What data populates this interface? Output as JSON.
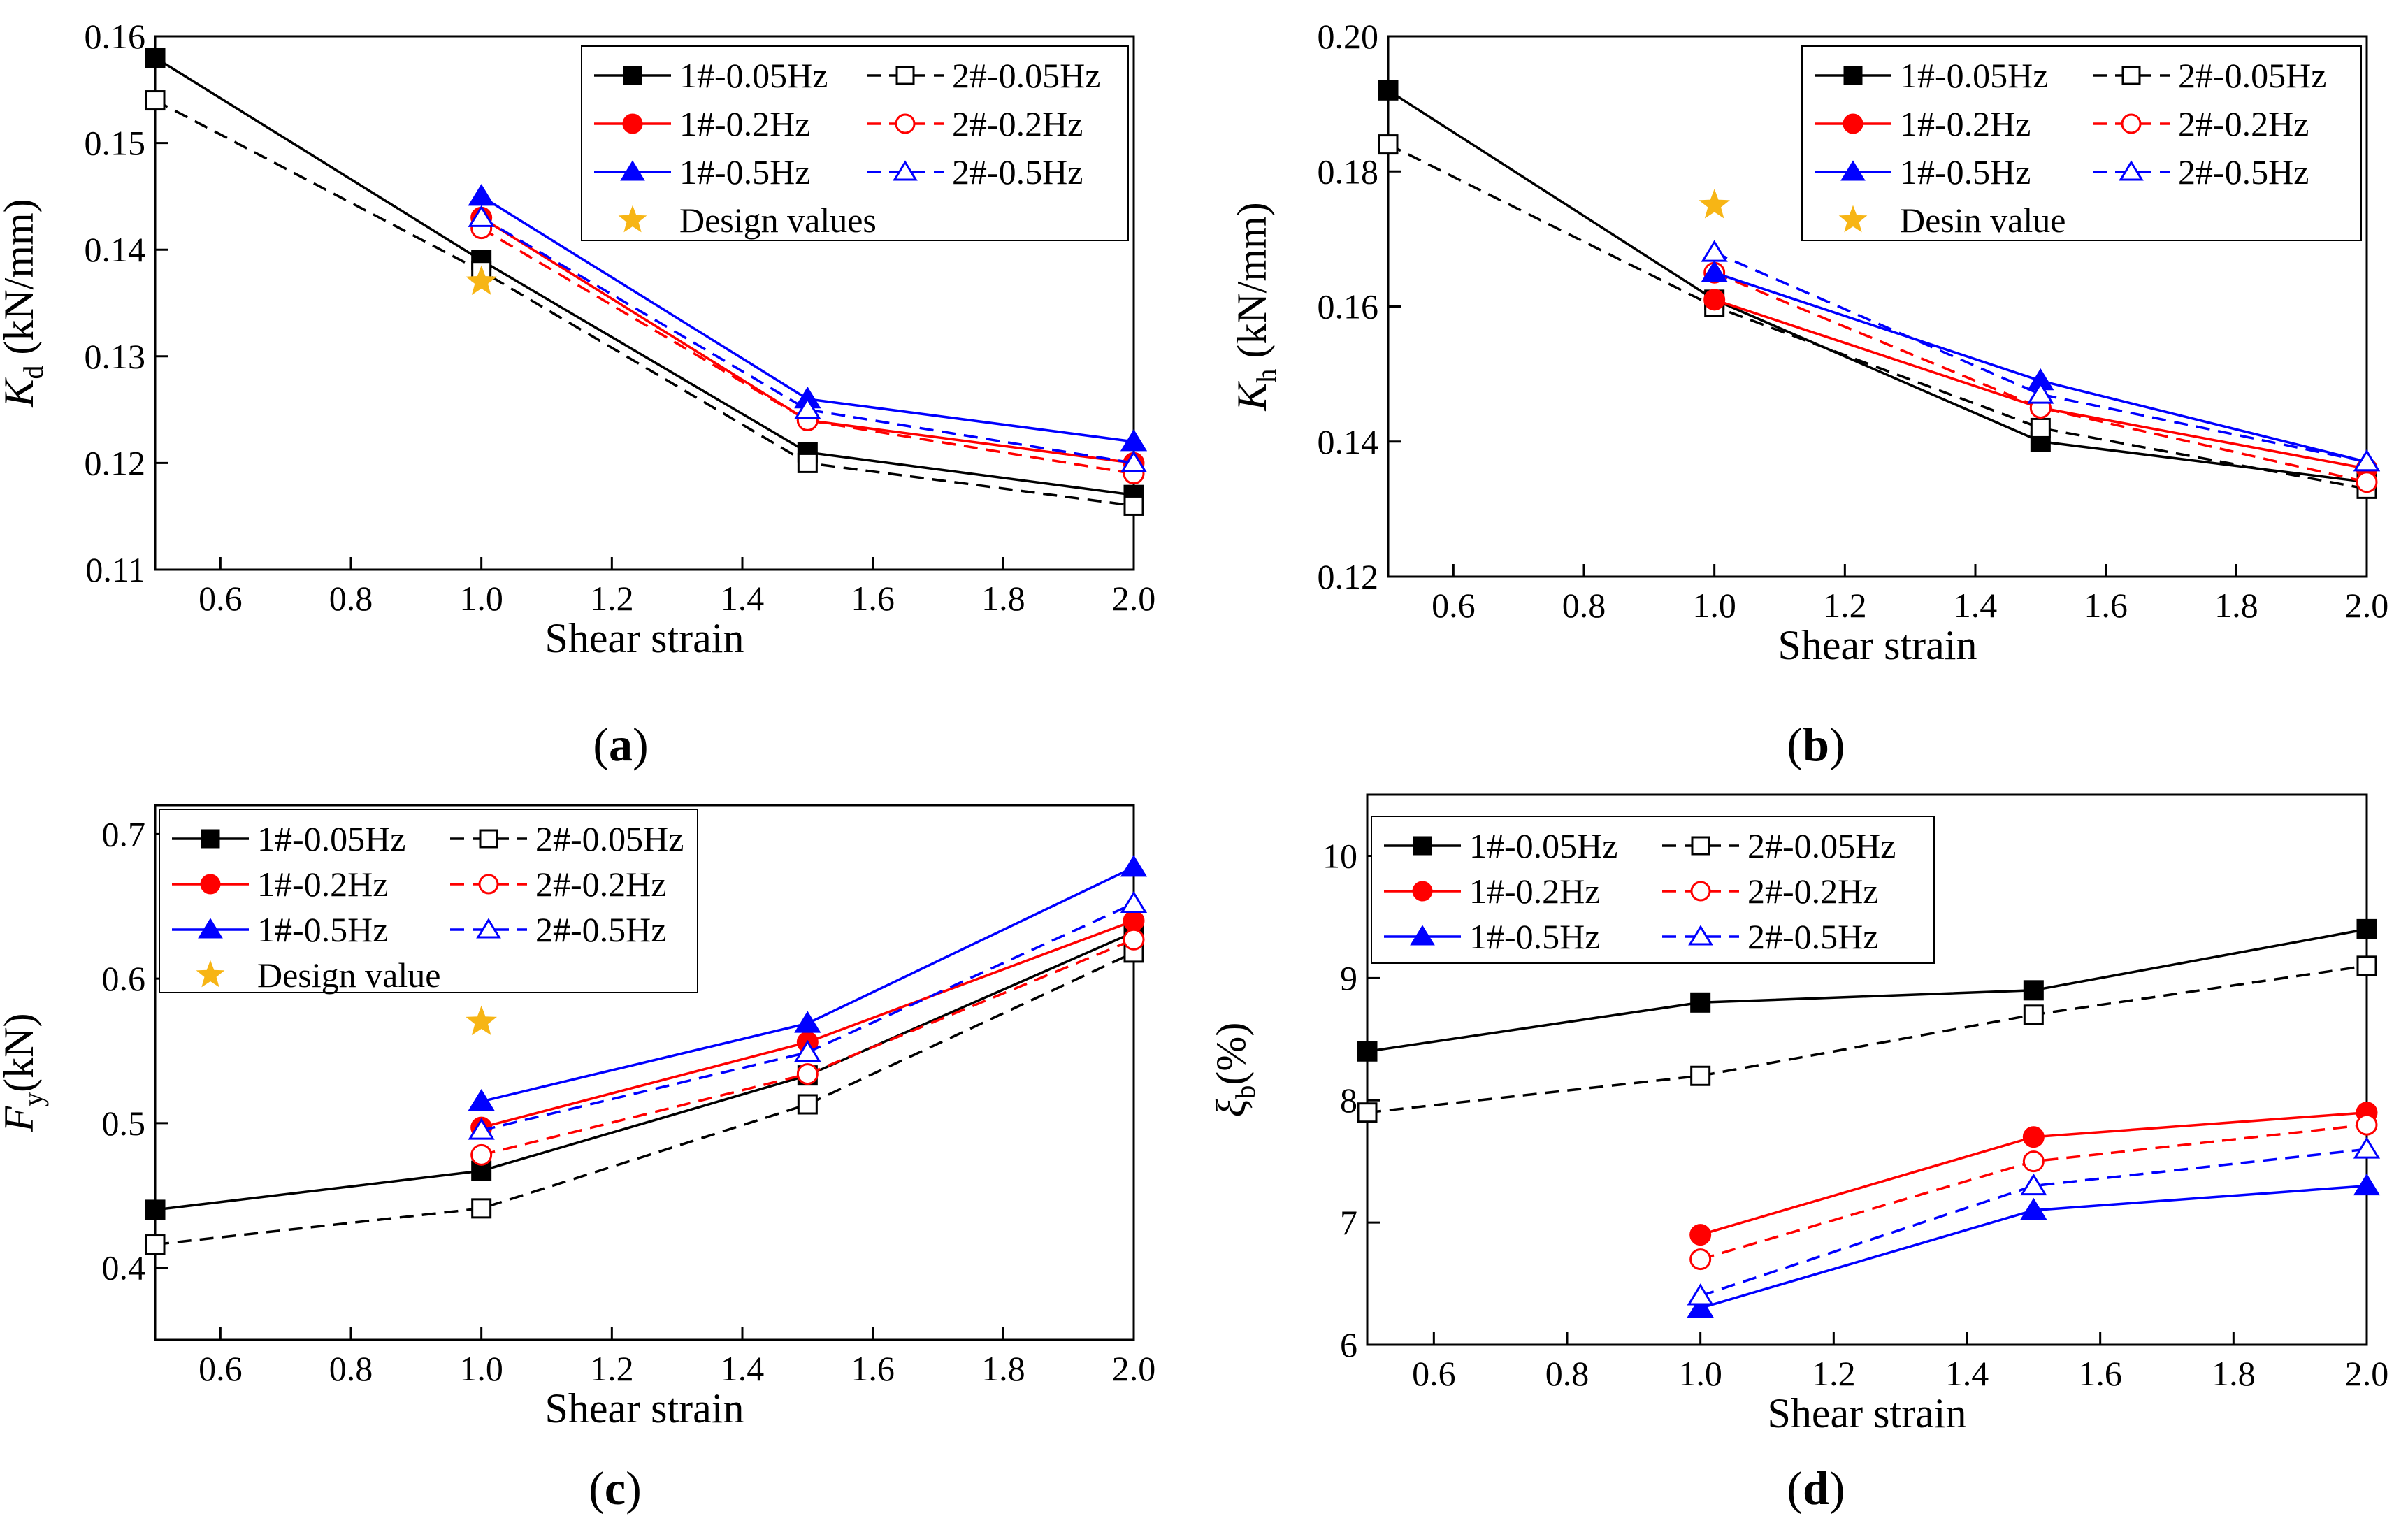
{
  "figure": {
    "colors": {
      "black": "#000000",
      "red": "#ff0000",
      "blue": "#0000ff",
      "star": "#f7b515"
    }
  },
  "chart_data": [
    {
      "panel": "a",
      "type": "line",
      "caption": "(a)",
      "caption_letter": "a",
      "ylabel_main": "K",
      "ylabel_sub": "d",
      "ylabel_rest": " (kN/mm)",
      "xlabel": "Shear strain",
      "xlim": [
        0.5,
        2.0
      ],
      "ylim": [
        0.11,
        0.16
      ],
      "xticks": [
        0.6,
        0.8,
        1.0,
        1.2,
        1.4,
        1.6,
        1.8,
        2.0
      ],
      "xtick_labels": [
        "0.6",
        "0.8",
        "1.0",
        "1.2",
        "1.4",
        "1.6",
        "1.8",
        "2.0"
      ],
      "yticks": [
        0.11,
        0.12,
        0.13,
        0.14,
        0.15,
        0.16
      ],
      "ytick_labels": [
        "0.11",
        "0.12",
        "0.13",
        "0.14",
        "0.15",
        "0.16"
      ],
      "legend_position": "top-right",
      "legend_columns": 2,
      "series": [
        {
          "name": "1#-0.05Hz",
          "color": "#000000",
          "dash": "solid",
          "marker": "square",
          "filled": true,
          "x": [
            0.5,
            1.0,
            1.5,
            2.0
          ],
          "y": [
            0.158,
            0.139,
            0.121,
            0.117
          ]
        },
        {
          "name": "2#-0.05Hz",
          "color": "#000000",
          "dash": "dashed",
          "marker": "square",
          "filled": false,
          "x": [
            0.5,
            1.0,
            1.5,
            2.0
          ],
          "y": [
            0.154,
            0.138,
            0.12,
            0.116
          ]
        },
        {
          "name": "1#-0.2Hz",
          "color": "#ff0000",
          "dash": "solid",
          "marker": "circle",
          "filled": true,
          "x": [
            1.0,
            1.5,
            2.0
          ],
          "y": [
            0.143,
            0.124,
            0.12
          ]
        },
        {
          "name": "2#-0.2Hz",
          "color": "#ff0000",
          "dash": "dashed",
          "marker": "circle",
          "filled": false,
          "x": [
            1.0,
            1.5,
            2.0
          ],
          "y": [
            0.142,
            0.124,
            0.119
          ]
        },
        {
          "name": "1#-0.5Hz",
          "color": "#0000ff",
          "dash": "solid",
          "marker": "triangle",
          "filled": true,
          "x": [
            1.0,
            1.5,
            2.0
          ],
          "y": [
            0.145,
            0.126,
            0.122
          ]
        },
        {
          "name": "2#-0.5Hz",
          "color": "#0000ff",
          "dash": "dashed",
          "marker": "triangle",
          "filled": false,
          "x": [
            1.0,
            1.5,
            2.0
          ],
          "y": [
            0.143,
            0.125,
            0.12
          ]
        }
      ],
      "design": {
        "name": "Design values",
        "x": 1.0,
        "y": 0.137
      }
    },
    {
      "panel": "b",
      "type": "line",
      "caption": "(b)",
      "caption_letter": "b",
      "ylabel_main": "K",
      "ylabel_sub": "h",
      "ylabel_rest": " (kN/mm)",
      "xlabel": "Shear strain",
      "xlim": [
        0.5,
        2.0
      ],
      "ylim": [
        0.12,
        0.2
      ],
      "xticks": [
        0.6,
        0.8,
        1.0,
        1.2,
        1.4,
        1.6,
        1.8,
        2.0
      ],
      "xtick_labels": [
        "0.6",
        "0.8",
        "1.0",
        "1.2",
        "1.4",
        "1.6",
        "1.8",
        "2.0"
      ],
      "yticks": [
        0.12,
        0.14,
        0.16,
        0.18,
        0.2
      ],
      "ytick_labels": [
        "0.12",
        "0.14",
        "0.16",
        "0.18",
        "0.20"
      ],
      "legend_position": "top-right",
      "legend_columns": 2,
      "series": [
        {
          "name": "1#-0.05Hz",
          "color": "#000000",
          "dash": "solid",
          "marker": "square",
          "filled": true,
          "x": [
            0.5,
            1.0,
            1.5,
            2.0
          ],
          "y": [
            0.192,
            0.161,
            0.14,
            0.134
          ]
        },
        {
          "name": "2#-0.05Hz",
          "color": "#000000",
          "dash": "dashed",
          "marker": "square",
          "filled": false,
          "x": [
            0.5,
            1.0,
            1.5,
            2.0
          ],
          "y": [
            0.184,
            0.16,
            0.142,
            0.133
          ]
        },
        {
          "name": "1#-0.2Hz",
          "color": "#ff0000",
          "dash": "solid",
          "marker": "circle",
          "filled": true,
          "x": [
            1.0,
            1.5,
            2.0
          ],
          "y": [
            0.161,
            0.145,
            0.136
          ]
        },
        {
          "name": "2#-0.2Hz",
          "color": "#ff0000",
          "dash": "dashed",
          "marker": "circle",
          "filled": false,
          "x": [
            1.0,
            1.5,
            2.0
          ],
          "y": [
            0.165,
            0.145,
            0.134
          ]
        },
        {
          "name": "1#-0.5Hz",
          "color": "#0000ff",
          "dash": "solid",
          "marker": "triangle",
          "filled": true,
          "x": [
            1.0,
            1.5,
            2.0
          ],
          "y": [
            0.165,
            0.149,
            0.137
          ]
        },
        {
          "name": "2#-0.5Hz",
          "color": "#0000ff",
          "dash": "dashed",
          "marker": "triangle",
          "filled": false,
          "x": [
            1.0,
            1.5,
            2.0
          ],
          "y": [
            0.168,
            0.147,
            0.137
          ]
        }
      ],
      "design": {
        "name": "Desin value",
        "x": 1.0,
        "y": 0.175
      }
    },
    {
      "panel": "c",
      "type": "line",
      "caption": "(c)",
      "caption_letter": "c",
      "ylabel_main": "F",
      "ylabel_sub": "y",
      "ylabel_rest": "(kN)",
      "xlabel": "Shear strain",
      "xlim": [
        0.5,
        2.0
      ],
      "ylim": [
        0.35,
        0.72
      ],
      "xticks": [
        0.6,
        0.8,
        1.0,
        1.2,
        1.4,
        1.6,
        1.8,
        2.0
      ],
      "xtick_labels": [
        "0.6",
        "0.8",
        "1.0",
        "1.2",
        "1.4",
        "1.6",
        "1.8",
        "2.0"
      ],
      "yticks": [
        0.4,
        0.5,
        0.6,
        0.7
      ],
      "ytick_labels": [
        "0.4",
        "0.5",
        "0.6",
        "0.7"
      ],
      "legend_position": "top-left",
      "legend_columns": 2,
      "series": [
        {
          "name": "1#-0.05Hz",
          "color": "#000000",
          "dash": "solid",
          "marker": "square",
          "filled": true,
          "x": [
            0.5,
            1.0,
            1.5,
            2.0
          ],
          "y": [
            0.44,
            0.467,
            0.533,
            0.632
          ]
        },
        {
          "name": "2#-0.05Hz",
          "color": "#000000",
          "dash": "dashed",
          "marker": "square",
          "filled": false,
          "x": [
            0.5,
            1.0,
            1.5,
            2.0
          ],
          "y": [
            0.416,
            0.441,
            0.513,
            0.618
          ]
        },
        {
          "name": "1#-0.2Hz",
          "color": "#ff0000",
          "dash": "solid",
          "marker": "circle",
          "filled": true,
          "x": [
            1.0,
            1.5,
            2.0
          ],
          "y": [
            0.497,
            0.556,
            0.64
          ]
        },
        {
          "name": "2#-0.2Hz",
          "color": "#ff0000",
          "dash": "dashed",
          "marker": "circle",
          "filled": false,
          "x": [
            1.0,
            1.5,
            2.0
          ],
          "y": [
            0.478,
            0.534,
            0.627
          ]
        },
        {
          "name": "1#-0.5Hz",
          "color": "#0000ff",
          "dash": "solid",
          "marker": "triangle",
          "filled": true,
          "x": [
            1.0,
            1.5,
            2.0
          ],
          "y": [
            0.515,
            0.569,
            0.677
          ]
        },
        {
          "name": "2#-0.5Hz",
          "color": "#0000ff",
          "dash": "dashed",
          "marker": "triangle",
          "filled": false,
          "x": [
            1.0,
            1.5,
            2.0
          ],
          "y": [
            0.495,
            0.549,
            0.652
          ]
        }
      ],
      "design": {
        "name": "Design value",
        "x": 1.0,
        "y": 0.57
      }
    },
    {
      "panel": "d",
      "type": "line",
      "caption": "(d)",
      "caption_letter": "d",
      "ylabel_main": "ξ",
      "ylabel_sub": "b",
      "ylabel_rest": "(%)",
      "xlabel": "Shear strain",
      "xlim": [
        0.5,
        2.0
      ],
      "ylim": [
        6,
        10.5
      ],
      "xticks": [
        0.6,
        0.8,
        1.0,
        1.2,
        1.4,
        1.6,
        1.8,
        2.0
      ],
      "xtick_labels": [
        "0.6",
        "0.8",
        "1.0",
        "1.2",
        "1.4",
        "1.6",
        "1.8",
        "2.0"
      ],
      "yticks": [
        6,
        7,
        8,
        9,
        10
      ],
      "ytick_labels": [
        "6",
        "7",
        "8",
        "9",
        "10"
      ],
      "legend_position": "top-left",
      "legend_columns": 2,
      "series": [
        {
          "name": "1#-0.05Hz",
          "color": "#000000",
          "dash": "solid",
          "marker": "square",
          "filled": true,
          "x": [
            0.5,
            1.0,
            1.5,
            2.0
          ],
          "y": [
            8.4,
            8.8,
            8.9,
            9.4
          ]
        },
        {
          "name": "2#-0.05Hz",
          "color": "#000000",
          "dash": "dashed",
          "marker": "square",
          "filled": false,
          "x": [
            0.5,
            1.0,
            1.5,
            2.0
          ],
          "y": [
            7.9,
            8.2,
            8.7,
            9.1
          ]
        },
        {
          "name": "1#-0.2Hz",
          "color": "#ff0000",
          "dash": "solid",
          "marker": "circle",
          "filled": true,
          "x": [
            1.0,
            1.5,
            2.0
          ],
          "y": [
            6.9,
            7.7,
            7.9
          ]
        },
        {
          "name": "2#-0.2Hz",
          "color": "#ff0000",
          "dash": "dashed",
          "marker": "circle",
          "filled": false,
          "x": [
            1.0,
            1.5,
            2.0
          ],
          "y": [
            6.7,
            7.5,
            7.8
          ]
        },
        {
          "name": "1#-0.5Hz",
          "color": "#0000ff",
          "dash": "solid",
          "marker": "triangle",
          "filled": true,
          "x": [
            1.0,
            1.5,
            2.0
          ],
          "y": [
            6.3,
            7.1,
            7.3
          ]
        },
        {
          "name": "2#-0.5Hz",
          "color": "#0000ff",
          "dash": "dashed",
          "marker": "triangle",
          "filled": false,
          "x": [
            1.0,
            1.5,
            2.0
          ],
          "y": [
            6.4,
            7.3,
            7.6
          ]
        }
      ],
      "design": null
    }
  ]
}
